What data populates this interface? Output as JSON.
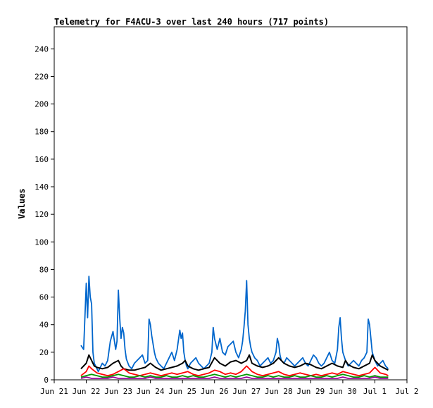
{
  "chart_data": {
    "type": "line",
    "title": "Telemetry for F4ACU-3 over last 240 hours (717 points)",
    "xlabel": "",
    "ylabel": "Values",
    "ylim": [
      0,
      256
    ],
    "yticks": [
      0,
      20,
      40,
      60,
      80,
      100,
      120,
      140,
      160,
      180,
      200,
      220,
      240
    ],
    "xlim_hours": [
      0,
      240
    ],
    "xticks": [
      {
        "label": "Jun 21",
        "hour": 0
      },
      {
        "label": "Jun 22",
        "hour": 24
      },
      {
        "label": "Jun 23",
        "hour": 48
      },
      {
        "label": "Jun 24",
        "hour": 72
      },
      {
        "label": "Jun 25",
        "hour": 96
      },
      {
        "label": "Jun 26",
        "hour": 120
      },
      {
        "label": "Jun 27",
        "hour": 144
      },
      {
        "label": "Jun 28",
        "hour": 168
      },
      {
        "label": "Jun 29",
        "hour": 192
      },
      {
        "label": "Jun 30",
        "hour": 216
      },
      {
        "label": "Jul 1",
        "hour": 240
      },
      {
        "label": "Jul 2",
        "hour": 264
      }
    ],
    "grid": false,
    "series": [
      {
        "color": "#0066cc",
        "x": [
          20,
          22,
          24,
          25,
          26,
          27,
          28,
          29,
          30,
          31,
          32,
          33,
          34,
          35,
          36,
          38,
          40,
          42,
          44,
          46,
          47,
          48,
          49,
          50,
          51,
          52,
          53,
          54,
          56,
          58,
          60,
          62,
          64,
          66,
          68,
          70,
          71,
          72,
          73,
          74,
          75,
          76,
          78,
          80,
          82,
          84,
          86,
          88,
          90,
          92,
          94,
          95,
          96,
          97,
          98,
          99,
          100,
          102,
          104,
          106,
          108,
          110,
          112,
          114,
          116,
          118,
          119,
          120,
          121,
          122,
          124,
          126,
          128,
          130,
          132,
          134,
          136,
          138,
          140,
          141,
          142,
          143,
          144,
          145,
          146,
          147,
          148,
          150,
          152,
          154,
          156,
          158,
          160,
          162,
          164,
          166,
          167,
          168,
          169,
          170,
          172,
          174,
          176,
          178,
          180,
          182,
          184,
          186,
          188,
          190,
          192,
          194,
          196,
          198,
          200,
          202,
          204,
          206,
          208,
          210,
          212,
          213,
          214,
          215,
          216,
          218,
          220,
          222,
          224,
          226,
          228,
          230,
          232,
          234,
          235,
          236,
          237,
          238,
          240,
          242,
          244,
          246,
          248,
          250
        ],
        "y": [
          25,
          22,
          70,
          45,
          75,
          60,
          55,
          20,
          12,
          10,
          8,
          6,
          8,
          10,
          12,
          10,
          14,
          28,
          35,
          22,
          28,
          65,
          45,
          30,
          38,
          34,
          22,
          15,
          10,
          8,
          12,
          14,
          16,
          18,
          12,
          14,
          44,
          40,
          32,
          26,
          20,
          16,
          12,
          10,
          8,
          12,
          16,
          20,
          14,
          22,
          36,
          30,
          34,
          20,
          14,
          10,
          8,
          12,
          14,
          16,
          12,
          10,
          8,
          10,
          12,
          20,
          38,
          30,
          26,
          22,
          30,
          20,
          18,
          24,
          26,
          28,
          20,
          16,
          22,
          28,
          38,
          50,
          72,
          40,
          30,
          24,
          20,
          16,
          14,
          10,
          12,
          14,
          16,
          12,
          14,
          20,
          30,
          26,
          18,
          14,
          12,
          16,
          14,
          12,
          10,
          12,
          14,
          16,
          12,
          10,
          14,
          18,
          16,
          12,
          10,
          12,
          16,
          20,
          14,
          12,
          22,
          38,
          45,
          30,
          20,
          14,
          10,
          12,
          14,
          12,
          10,
          14,
          16,
          20,
          44,
          40,
          30,
          20,
          14,
          10,
          12,
          14,
          10,
          8
        ]
      },
      {
        "color": "#000000",
        "x": [
          20,
          24,
          26,
          28,
          30,
          32,
          36,
          40,
          44,
          48,
          50,
          52,
          56,
          60,
          64,
          68,
          72,
          76,
          80,
          84,
          88,
          92,
          96,
          98,
          100,
          104,
          108,
          112,
          116,
          120,
          122,
          124,
          128,
          132,
          136,
          140,
          144,
          146,
          148,
          152,
          156,
          160,
          164,
          168,
          172,
          176,
          180,
          184,
          188,
          192,
          196,
          200,
          204,
          208,
          212,
          216,
          218,
          220,
          224,
          228,
          232,
          236,
          238,
          240,
          244,
          248,
          250
        ],
        "y": [
          8,
          12,
          18,
          14,
          10,
          9,
          8,
          9,
          12,
          14,
          10,
          8,
          7,
          7,
          8,
          9,
          12,
          9,
          7,
          8,
          9,
          10,
          12,
          14,
          10,
          8,
          7,
          8,
          9,
          16,
          14,
          12,
          10,
          13,
          14,
          12,
          14,
          18,
          12,
          10,
          9,
          10,
          12,
          16,
          12,
          10,
          9,
          10,
          12,
          11,
          9,
          8,
          10,
          12,
          10,
          9,
          14,
          11,
          9,
          8,
          10,
          12,
          18,
          14,
          10,
          8,
          7
        ]
      },
      {
        "color": "#ff0000",
        "x": [
          20,
          24,
          26,
          28,
          32,
          36,
          40,
          44,
          48,
          52,
          56,
          60,
          64,
          68,
          72,
          76,
          80,
          84,
          88,
          92,
          96,
          100,
          104,
          108,
          112,
          116,
          120,
          124,
          128,
          132,
          136,
          140,
          144,
          146,
          148,
          152,
          156,
          160,
          164,
          168,
          172,
          176,
          180,
          184,
          188,
          192,
          196,
          200,
          204,
          208,
          212,
          216,
          220,
          224,
          228,
          232,
          236,
          240,
          244,
          248,
          250
        ],
        "y": [
          3,
          6,
          10,
          8,
          5,
          4,
          3,
          4,
          6,
          8,
          5,
          4,
          3,
          4,
          5,
          4,
          3,
          4,
          5,
          4,
          5,
          6,
          4,
          3,
          4,
          5,
          7,
          6,
          4,
          5,
          4,
          6,
          10,
          8,
          6,
          4,
          3,
          4,
          5,
          6,
          4,
          3,
          4,
          5,
          4,
          3,
          4,
          3,
          4,
          5,
          4,
          6,
          5,
          4,
          3,
          4,
          5,
          9,
          5,
          4,
          3
        ]
      },
      {
        "color": "#009900",
        "x": [
          20,
          24,
          28,
          32,
          36,
          40,
          44,
          48,
          52,
          56,
          60,
          64,
          68,
          72,
          76,
          80,
          84,
          88,
          92,
          96,
          100,
          104,
          108,
          112,
          116,
          120,
          124,
          128,
          132,
          136,
          140,
          144,
          148,
          152,
          156,
          160,
          164,
          168,
          172,
          176,
          180,
          184,
          188,
          192,
          196,
          200,
          204,
          208,
          212,
          216,
          220,
          224,
          228,
          232,
          236,
          240,
          244,
          248,
          250
        ],
        "y": [
          2,
          3,
          4,
          3,
          2,
          2,
          3,
          4,
          3,
          2,
          2,
          3,
          2,
          3,
          2,
          2,
          3,
          2,
          2,
          3,
          2,
          3,
          2,
          2,
          3,
          4,
          3,
          2,
          3,
          2,
          3,
          4,
          3,
          2,
          2,
          3,
          2,
          3,
          2,
          2,
          3,
          2,
          2,
          3,
          2,
          2,
          3,
          2,
          3,
          4,
          3,
          2,
          2,
          3,
          2,
          3,
          2,
          2,
          2
        ]
      },
      {
        "color": "#990099",
        "x": [
          20,
          24,
          28,
          32,
          36,
          40,
          44,
          48,
          52,
          56,
          60,
          64,
          68,
          72,
          76,
          80,
          84,
          88,
          92,
          96,
          100,
          104,
          108,
          112,
          116,
          120,
          124,
          128,
          132,
          136,
          140,
          144,
          148,
          152,
          156,
          160,
          164,
          168,
          172,
          176,
          180,
          184,
          188,
          192,
          196,
          200,
          204,
          208,
          212,
          216,
          220,
          224,
          228,
          232,
          236,
          240,
          244,
          248,
          250
        ],
        "y": [
          1,
          2,
          1,
          1,
          1,
          1,
          2,
          1,
          1,
          1,
          1,
          1,
          1,
          2,
          1,
          1,
          1,
          1,
          1,
          1,
          1,
          1,
          1,
          1,
          1,
          2,
          1,
          1,
          1,
          1,
          1,
          2,
          1,
          1,
          1,
          1,
          1,
          1,
          1,
          1,
          1,
          1,
          1,
          1,
          1,
          1,
          1,
          1,
          1,
          2,
          1,
          1,
          1,
          1,
          1,
          2,
          1,
          1,
          1
        ]
      }
    ]
  }
}
